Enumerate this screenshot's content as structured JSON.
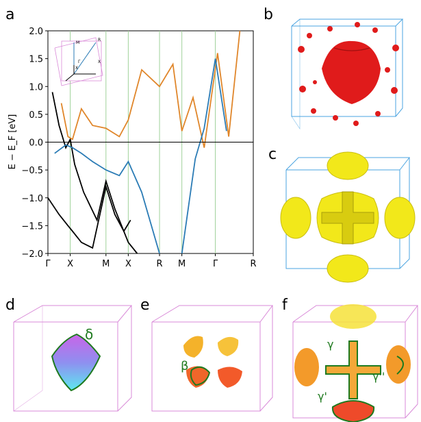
{
  "panels": {
    "a": "a",
    "b": "b",
    "c": "c",
    "d": "d",
    "e": "e",
    "f": "f"
  },
  "colors": {
    "band_black": "#000000",
    "band_blue": "#2a7bb5",
    "band_orange": "#e0862a",
    "vline_green": "#9fd29a",
    "bz_pink": "#d98ad8",
    "bz_blue": "#4aa3e0",
    "fs_red": "#e01b1b",
    "fs_yellow": "#f2e81a",
    "label_green": "#1f7a1f"
  },
  "chart_data": {
    "type": "line",
    "title": "",
    "xlabel": "",
    "ylabel": "E − E_F [eV]",
    "ylim": [
      -2.0,
      2.0
    ],
    "yticks": [
      "−2.0",
      "−1.5",
      "−1.0",
      "−0.5",
      "0.0",
      "0.5",
      "1.0",
      "1.5",
      "2.0"
    ],
    "ytick_values": [
      -2.0,
      -1.5,
      -1.0,
      -0.5,
      0.0,
      0.5,
      1.0,
      1.5,
      2.0
    ],
    "kpath": [
      "Γ",
      "X",
      "M",
      "X",
      "R",
      "M",
      "Γ",
      "R"
    ],
    "kpath_pos": [
      0,
      1,
      2.6,
      3.6,
      5.0,
      6.0,
      7.5,
      9.2
    ],
    "fermi_level": 0.0,
    "inset_labels": [
      "M",
      "R",
      "Γ",
      "X",
      "X"
    ],
    "series": [
      {
        "color": "black",
        "x": [
          0.2,
          0.5,
          0.8,
          1.0,
          1.2,
          1.6,
          2.2,
          2.6,
          3.0,
          3.6,
          4.0
        ],
        "y": [
          0.9,
          0.3,
          -0.1,
          0.05,
          -0.4,
          -0.9,
          -1.4,
          -0.7,
          -1.2,
          -1.8,
          -2.0
        ]
      },
      {
        "color": "black",
        "x": [
          0.0,
          0.5,
          0.9,
          1.1,
          1.5,
          2.0,
          2.6,
          3.0,
          3.4,
          3.7
        ],
        "y": [
          -1.0,
          -1.3,
          -1.5,
          -1.6,
          -1.8,
          -1.9,
          -0.8,
          -1.3,
          -1.6,
          -1.4
        ]
      },
      {
        "color": "orange",
        "x": [
          0.6,
          0.9,
          1.1,
          1.5,
          2.0,
          2.6,
          3.2,
          3.6,
          4.2,
          5.0,
          5.6,
          6.0,
          6.5,
          7.0,
          7.6,
          8.1,
          8.6
        ],
        "y": [
          0.7,
          0.1,
          0.05,
          0.6,
          0.3,
          0.25,
          0.1,
          0.4,
          1.3,
          1.0,
          1.4,
          0.2,
          0.8,
          -0.1,
          1.6,
          0.1,
          2.0
        ]
      },
      {
        "color": "blue",
        "x": [
          0.3,
          0.8,
          1.1,
          1.5,
          2.0,
          2.6,
          3.2,
          3.6,
          4.2,
          5.0
        ],
        "y": [
          -0.2,
          -0.05,
          -0.1,
          -0.2,
          -0.35,
          -0.5,
          -0.6,
          -0.35,
          -0.9,
          -2.0
        ]
      },
      {
        "color": "blue",
        "x": [
          6.0,
          6.6,
          7.0,
          7.5,
          8.0
        ],
        "y": [
          -2.0,
          -0.3,
          0.25,
          1.5,
          0.2
        ]
      }
    ]
  },
  "annotations": {
    "delta": "δ",
    "beta": "β",
    "gamma": "γ",
    "gamma_double_prime": "γ''",
    "gamma_prime": "γ'"
  }
}
